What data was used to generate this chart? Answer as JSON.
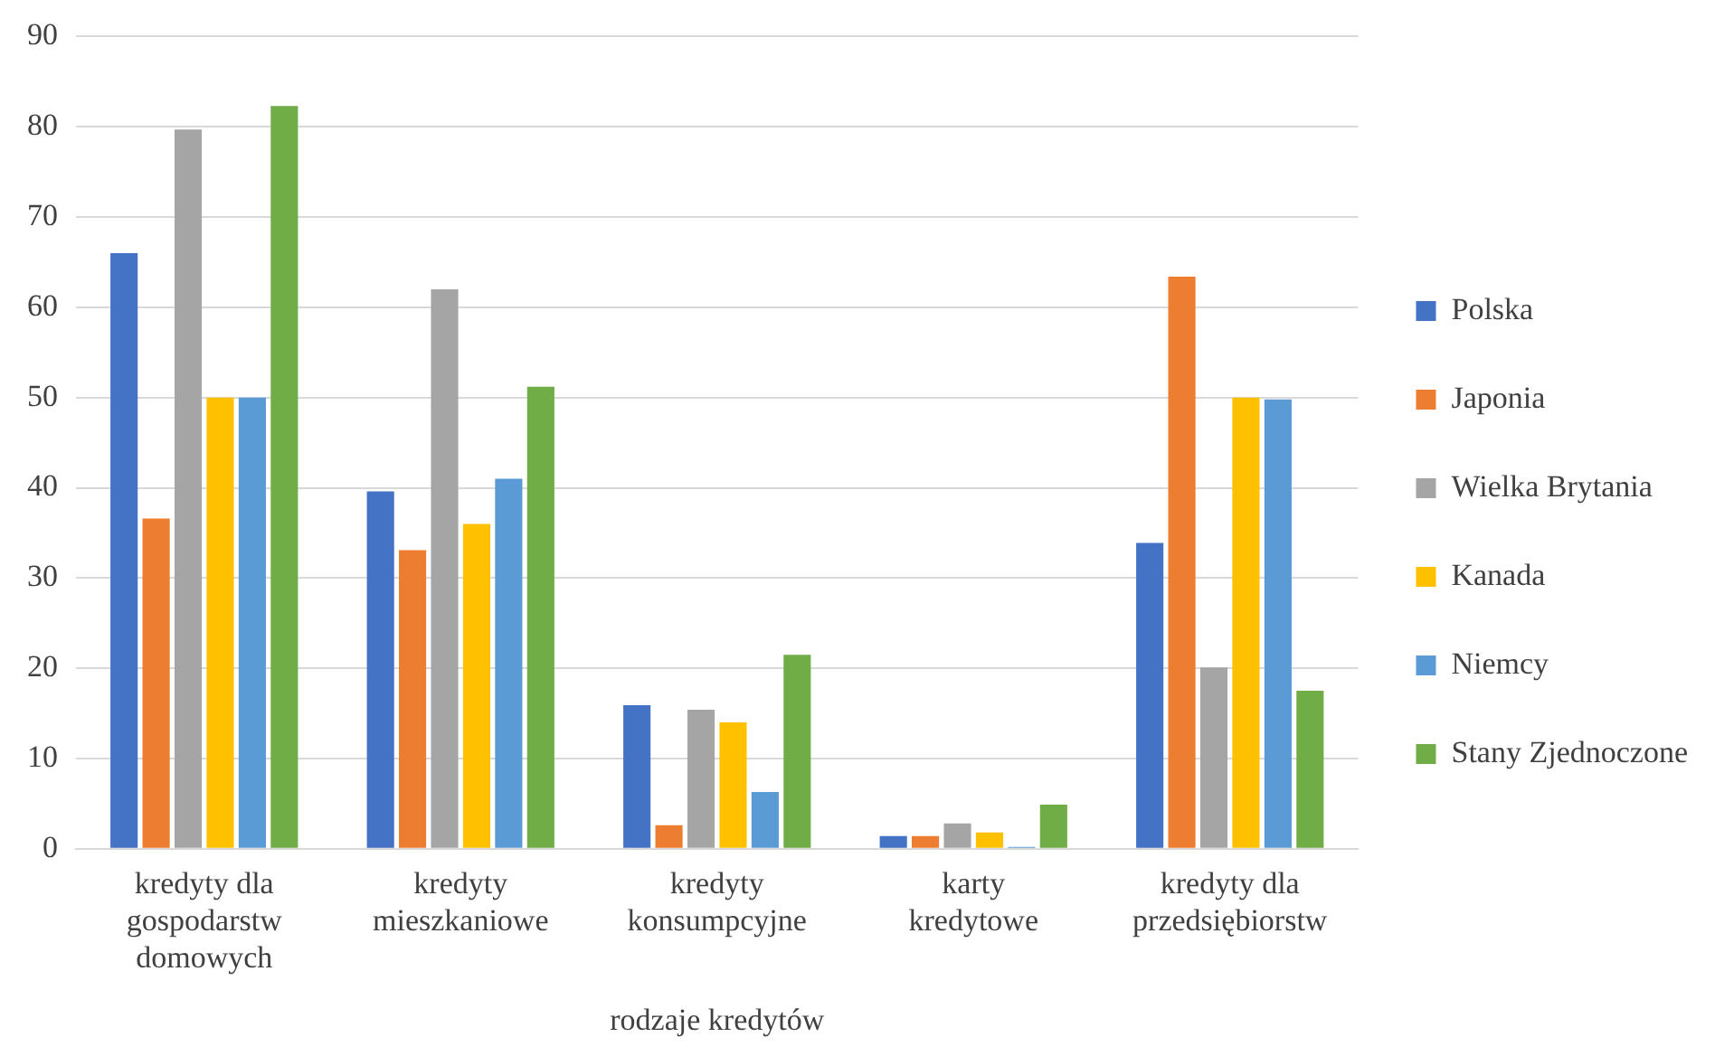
{
  "chart_data": {
    "type": "bar",
    "xlabel": "rodzaje kredytów",
    "categories": [
      "kredyty dla gospodarstw domowych",
      "kredyty mieszkaniowe",
      "kredyty konsumpcyjne",
      "karty kredytowe",
      "kredyty dla przedsiębiorstw"
    ],
    "series": [
      {
        "name": "Polska",
        "color": "#4472c4",
        "values": [
          66,
          39.6,
          15.9,
          1.4,
          33.9
        ]
      },
      {
        "name": "Japonia",
        "color": "#ed7d31",
        "values": [
          36.6,
          33.1,
          2.6,
          1.4,
          63.4
        ]
      },
      {
        "name": "Wielka Brytania",
        "color": "#a5a5a5",
        "values": [
          79.7,
          62,
          15.4,
          2.8,
          20.1
        ]
      },
      {
        "name": "Kanada",
        "color": "#ffc000",
        "values": [
          50,
          36,
          14,
          1.8,
          50
        ]
      },
      {
        "name": "Niemcy",
        "color": "#5b9bd5",
        "values": [
          50,
          41,
          6.3,
          0.2,
          49.8
        ]
      },
      {
        "name": "Stany Zjednoczone",
        "color": "#70ad47",
        "values": [
          82.3,
          51.2,
          21.5,
          4.9,
          17.5
        ]
      }
    ],
    "ylim": [
      0,
      90
    ],
    "yticks": [
      0,
      10,
      20,
      30,
      40,
      50,
      60,
      70,
      80,
      90
    ],
    "grid": "y",
    "legend": "right"
  }
}
